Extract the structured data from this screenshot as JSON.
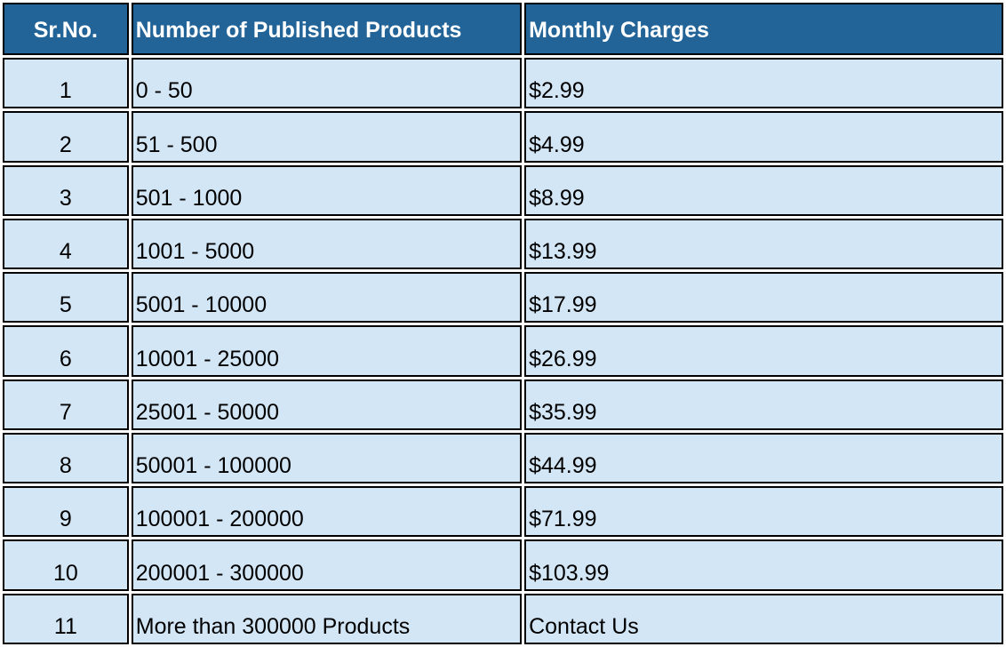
{
  "table": {
    "headers": [
      "Sr.No.",
      "Number of Published Products",
      "Monthly Charges"
    ],
    "rows": [
      [
        "1",
        "0 - 50",
        "$2.99"
      ],
      [
        "2",
        "51 - 500",
        "$4.99"
      ],
      [
        "3",
        "501 - 1000",
        "$8.99"
      ],
      [
        "4",
        "1001 - 5000",
        "$13.99"
      ],
      [
        "5",
        "5001 - 10000",
        "$17.99"
      ],
      [
        "6",
        "10001 - 25000",
        "$26.99"
      ],
      [
        "7",
        "25001 - 50000",
        "$35.99"
      ],
      [
        "8",
        "50001 - 100000",
        "$44.99"
      ],
      [
        "9",
        "100001 - 200000",
        "$71.99"
      ],
      [
        "10",
        "200001 - 300000",
        "$103.99"
      ],
      [
        "11",
        "More than 300000 Products",
        "Contact Us"
      ]
    ]
  },
  "colors": {
    "header_background": "#236498",
    "header_text": "#ffffff",
    "cell_background": "#d3e6f6",
    "border": "#000000"
  }
}
